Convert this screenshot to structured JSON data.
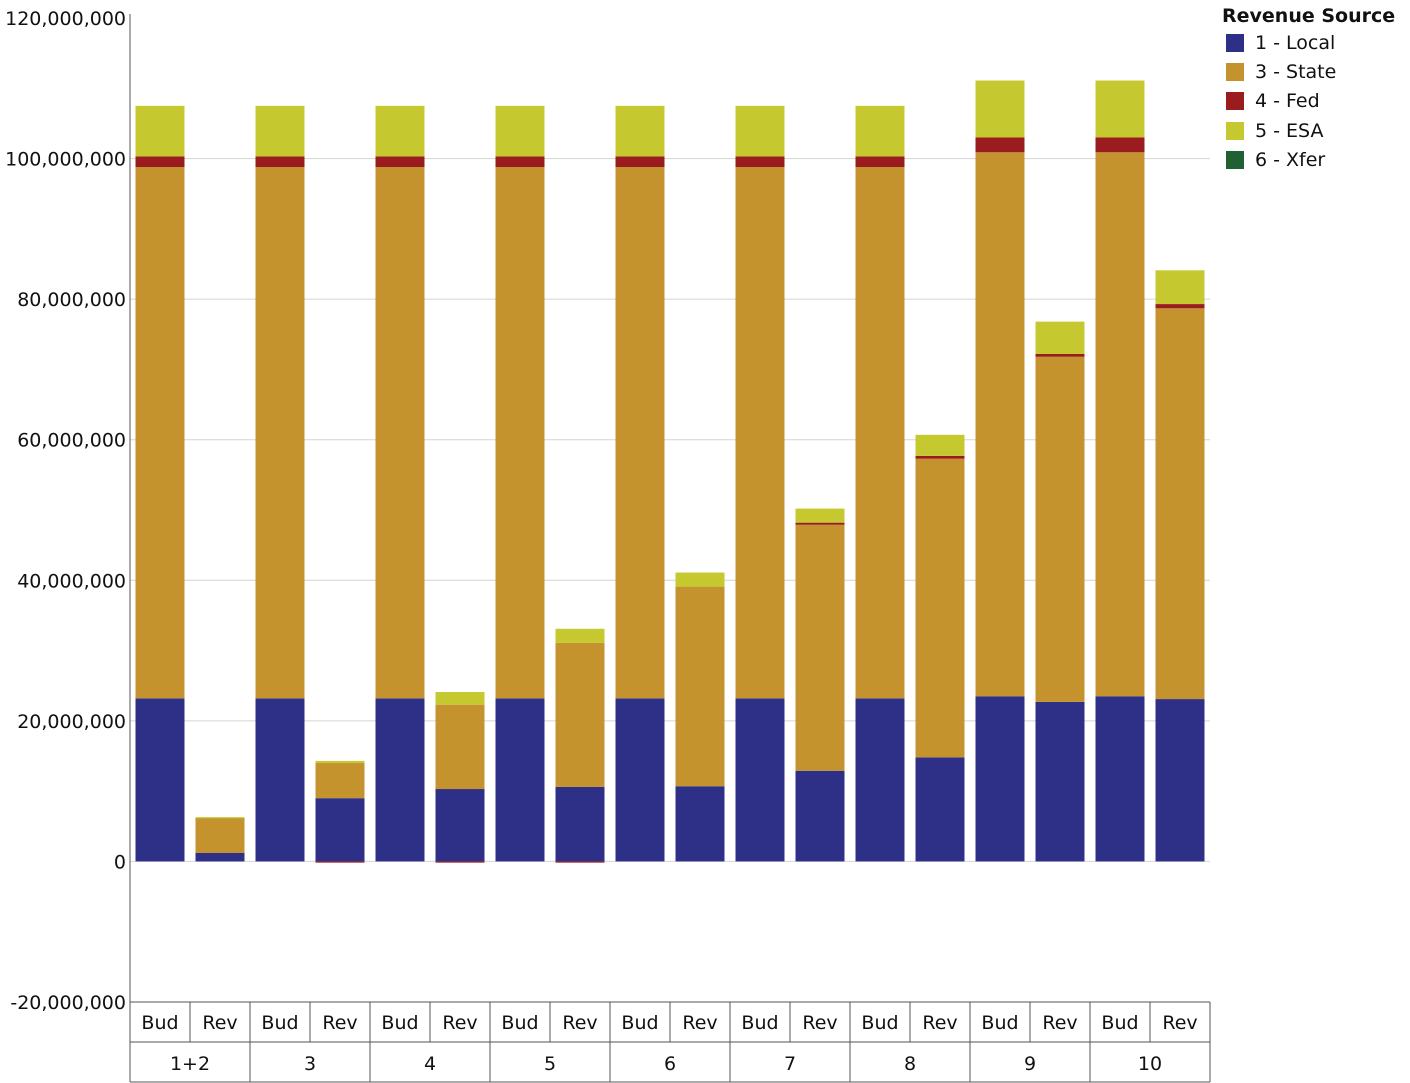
{
  "chart_data": {
    "type": "bar",
    "stacked": true,
    "legend_title": "Revenue Source",
    "legend_position": "top-right",
    "grid": true,
    "ylim": [
      -20000000,
      120000000
    ],
    "y_ticks": [
      "120,000,000",
      "100,000,000",
      "80,000,000",
      "60,000,000",
      "40,000,000",
      "20,000,000",
      "0",
      "-20,000,000"
    ],
    "groups": [
      "1+2",
      "3",
      "4",
      "5",
      "6",
      "7",
      "8",
      "9",
      "10"
    ],
    "categories": [
      "Bud",
      "Rev",
      "Bud",
      "Rev",
      "Bud",
      "Rev",
      "Bud",
      "Rev",
      "Bud",
      "Rev",
      "Bud",
      "Rev",
      "Bud",
      "Rev",
      "Bud",
      "Rev",
      "Bud",
      "Rev"
    ],
    "series": [
      {
        "name": "1 - Local",
        "color": "#2e3087",
        "values": [
          23200000,
          1200000,
          23200000,
          9000000,
          23200000,
          10300000,
          23200000,
          10600000,
          23200000,
          10700000,
          23200000,
          12900000,
          23200000,
          14800000,
          23500000,
          22700000,
          23500000,
          23100000
        ]
      },
      {
        "name": "3 - State",
        "color": "#c4932e",
        "values": [
          75600000,
          5000000,
          75600000,
          5000000,
          75600000,
          12000000,
          75600000,
          20500000,
          75600000,
          28400000,
          75600000,
          35000000,
          75600000,
          42500000,
          77400000,
          49100000,
          77400000,
          55600000
        ]
      },
      {
        "name": "4 - Fed",
        "color": "#9a1c1f",
        "values": [
          1500000,
          0,
          1500000,
          -100000,
          1500000,
          -100000,
          1500000,
          -100000,
          1500000,
          0,
          1500000,
          300000,
          1500000,
          400000,
          2100000,
          400000,
          2100000,
          600000
        ]
      },
      {
        "name": "5 - ESA",
        "color": "#c5c82f",
        "values": [
          7200000,
          100000,
          7200000,
          300000,
          7200000,
          1800000,
          7200000,
          2000000,
          7200000,
          2000000,
          7200000,
          2000000,
          7200000,
          3000000,
          8100000,
          4600000,
          8100000,
          4800000
        ]
      },
      {
        "name": "6 - Xfer",
        "color": "#1f6133",
        "values": [
          0,
          0,
          0,
          0,
          0,
          0,
          0,
          0,
          0,
          0,
          0,
          0,
          0,
          0,
          0,
          0,
          0,
          0
        ]
      }
    ]
  }
}
